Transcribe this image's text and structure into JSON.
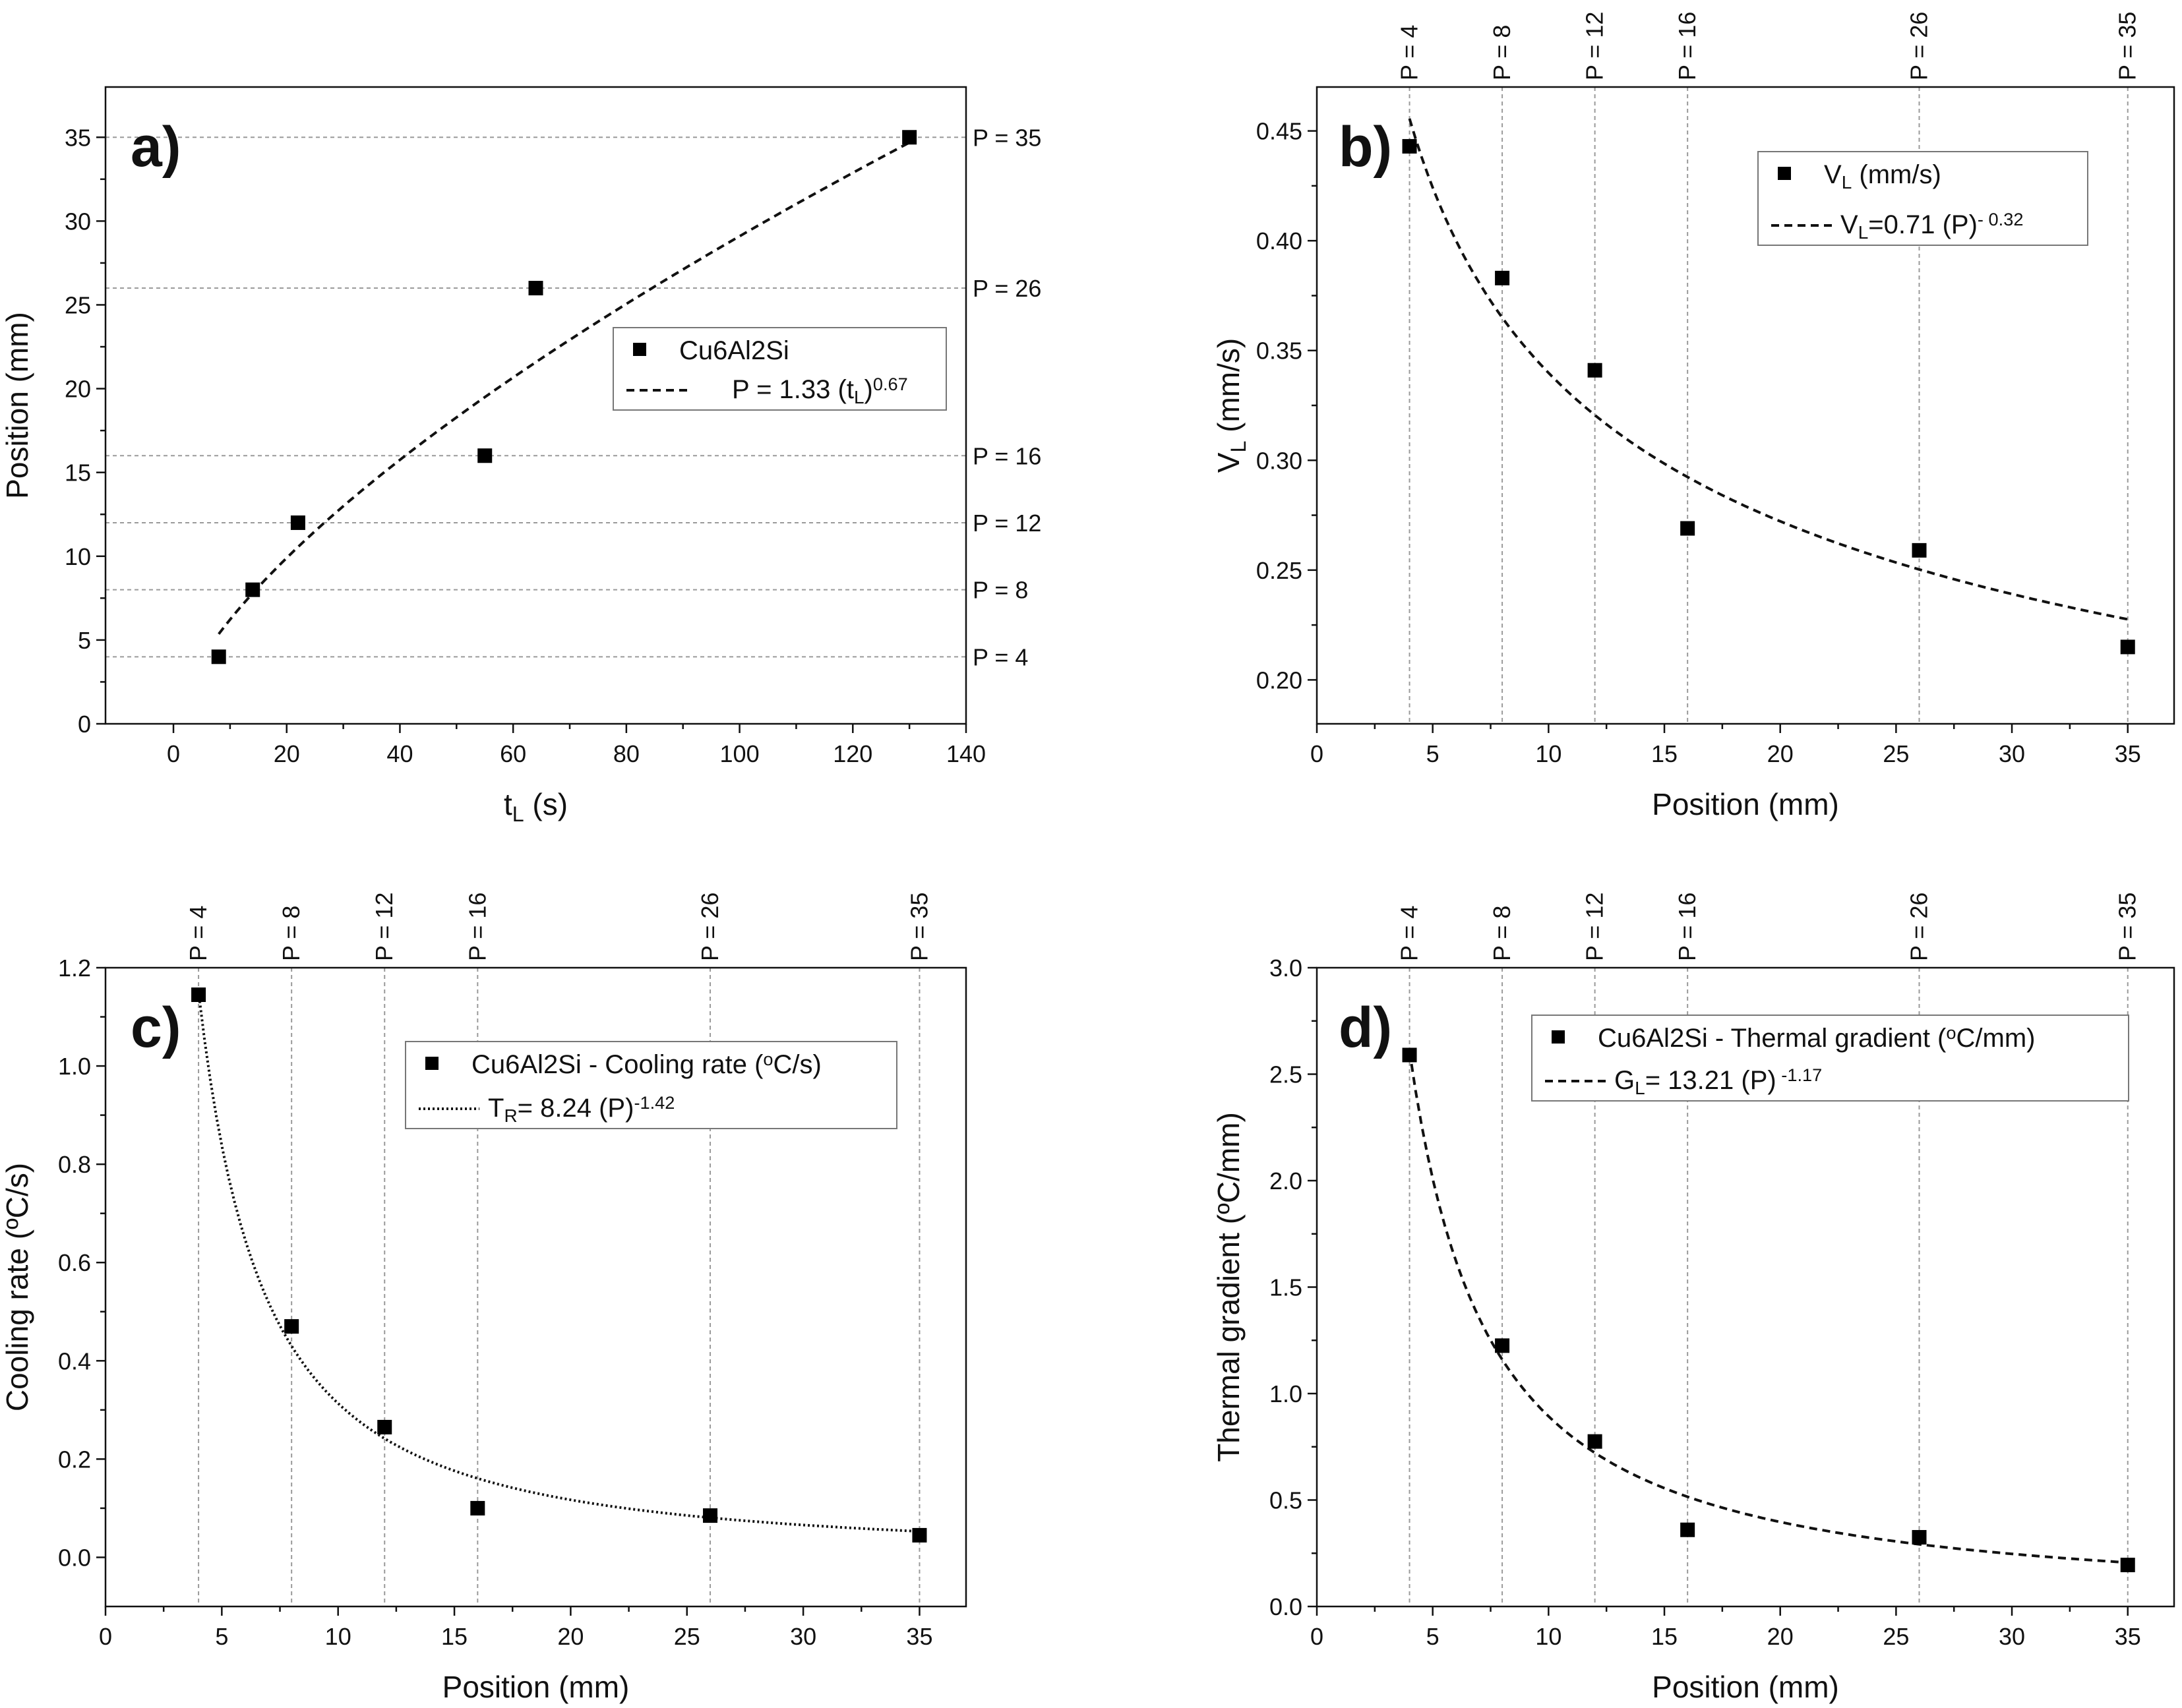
{
  "chart_data": [
    {
      "panel": "a)",
      "type": "scatter",
      "xlabel": "t_L (s)",
      "ylabel": "Position (mm)",
      "xlim": [
        -12,
        140
      ],
      "ylim": [
        0,
        38
      ],
      "xticks": [
        0,
        20,
        40,
        60,
        80,
        100,
        120,
        140
      ],
      "yticks": [
        0,
        5,
        10,
        15,
        20,
        25,
        30,
        35
      ],
      "x": [
        8,
        14,
        22,
        55,
        64,
        130
      ],
      "y": [
        4,
        8,
        12,
        16,
        26,
        35
      ],
      "fit": {
        "kind": "power",
        "a": 1.33,
        "b": 0.67,
        "var": "x",
        "range": [
          8,
          130
        ],
        "style": "dash"
      },
      "guides": {
        "orientation": "horizontal",
        "values": [
          4,
          8,
          12,
          16,
          26,
          35
        ],
        "labels": [
          "P = 4",
          "P = 8",
          "P = 12",
          "P = 16",
          "P = 26",
          "P = 35"
        ]
      },
      "legend": {
        "marker_label": "Cu6Al2Si",
        "fit_label": "P = 1.33 (t",
        "fit_sub": "L",
        "fit_tail": ")",
        "fit_sup": "0.67"
      }
    },
    {
      "panel": "b)",
      "type": "scatter",
      "xlabel": "Position (mm)",
      "ylabel": "V_L (mm/s)",
      "xlim": [
        0,
        37
      ],
      "ylim": [
        0.18,
        0.47
      ],
      "xticks": [
        0,
        5,
        10,
        15,
        20,
        25,
        30,
        35
      ],
      "yticks": [
        0.2,
        0.25,
        0.3,
        0.35,
        0.4,
        0.45
      ],
      "x": [
        4,
        8,
        12,
        16,
        26,
        35
      ],
      "y": [
        0.443,
        0.383,
        0.341,
        0.269,
        0.259,
        0.215
      ],
      "fit": {
        "kind": "power",
        "a": 0.71,
        "b": -0.32,
        "var": "x",
        "range": [
          4,
          35
        ],
        "style": "dash"
      },
      "guides": {
        "orientation": "vertical",
        "values": [
          4,
          8,
          12,
          16,
          26,
          35
        ],
        "labels": [
          "P = 4",
          "P = 8",
          "P = 12",
          "P = 16",
          "P = 26",
          "P = 35"
        ]
      },
      "legend": {
        "marker_label": "V",
        "marker_sub": "L",
        "marker_tail": " (mm/s)",
        "fit_label": "V",
        "fit_sub": "L",
        "fit_tail": "=0.71 (P)",
        "fit_sup": "- 0.32"
      }
    },
    {
      "panel": "c)",
      "type": "scatter",
      "xlabel": "Position (mm)",
      "ylabel": "Cooling rate (ºC/s)",
      "xlim": [
        0,
        37
      ],
      "ylim": [
        -0.1,
        1.2
      ],
      "xticks": [
        0,
        5,
        10,
        15,
        20,
        25,
        30,
        35
      ],
      "yticks": [
        0.0,
        0.2,
        0.4,
        0.6,
        0.8,
        1.0,
        1.2
      ],
      "x": [
        4,
        8,
        12,
        16,
        26,
        35
      ],
      "y": [
        1.145,
        0.47,
        0.265,
        0.1,
        0.085,
        0.045
      ],
      "fit": {
        "kind": "power",
        "a": 8.24,
        "b": -1.42,
        "var": "x",
        "range": [
          4,
          35
        ],
        "style": "dot"
      },
      "guides": {
        "orientation": "vertical",
        "values": [
          4,
          8,
          12,
          16,
          26,
          35
        ],
        "labels": [
          "P = 4",
          "P = 8",
          "P = 12",
          "P = 16",
          "P = 26",
          "P = 35"
        ]
      },
      "legend": {
        "marker_label": "Cu6Al2Si - Cooling rate (",
        "marker_sup": "o",
        "marker_tail": "C/s)",
        "fit_label": "T",
        "fit_sub": "R",
        "fit_tail": "= 8.24 (P)",
        "fit_sup": "-1.42"
      }
    },
    {
      "panel": "d)",
      "type": "scatter",
      "xlabel": "Position (mm)",
      "ylabel": "Thermal gradient (ºC/mm)",
      "xlim": [
        0,
        37
      ],
      "ylim": [
        0,
        3.0
      ],
      "xticks": [
        0,
        5,
        10,
        15,
        20,
        25,
        30,
        35
      ],
      "yticks": [
        0.0,
        0.5,
        1.0,
        1.5,
        2.0,
        2.5,
        3.0
      ],
      "x": [
        4,
        8,
        12,
        16,
        26,
        35
      ],
      "y": [
        2.59,
        1.225,
        0.775,
        0.36,
        0.325,
        0.195
      ],
      "fit": {
        "kind": "power",
        "a": 13.21,
        "b": -1.17,
        "var": "x",
        "range": [
          4,
          35
        ],
        "style": "dash"
      },
      "guides": {
        "orientation": "vertical",
        "values": [
          4,
          8,
          12,
          16,
          26,
          35
        ],
        "labels": [
          "P = 4",
          "P = 8",
          "P = 12",
          "P = 16",
          "P = 26",
          "P = 35"
        ]
      },
      "legend": {
        "marker_label": "Cu6Al2Si - Thermal gradient  (",
        "marker_sup": "o",
        "marker_tail": "C/mm)",
        "fit_label": "G",
        "fit_sub": "L",
        "fit_tail": "= 13.21 (P)",
        "fit_sup": " -1.17"
      }
    }
  ]
}
